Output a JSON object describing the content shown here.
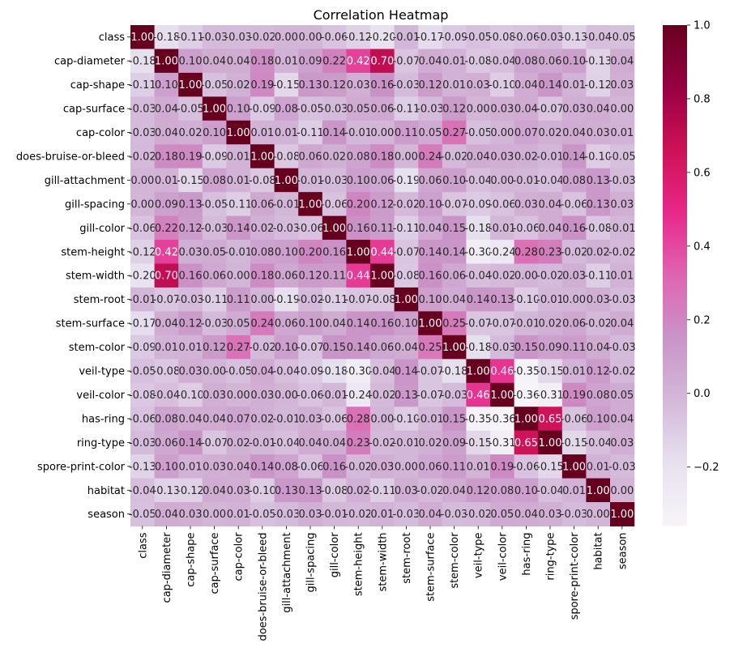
{
  "chart_data": {
    "type": "heatmap",
    "title": "Correlation Heatmap",
    "labels": [
      "class",
      "cap-diameter",
      "cap-shape",
      "cap-surface",
      "cap-color",
      "does-bruise-or-bleed",
      "gill-attachment",
      "gill-spacing",
      "gill-color",
      "stem-height",
      "stem-width",
      "stem-root",
      "stem-surface",
      "stem-color",
      "veil-type",
      "veil-color",
      "has-ring",
      "ring-type",
      "spore-print-color",
      "habitat",
      "season"
    ],
    "values": [
      [
        1.0,
        -0.18,
        -0.11,
        -0.03,
        -0.03,
        -0.02,
        -0.0,
        -0.0,
        -0.06,
        -0.12,
        -0.2,
        -0.01,
        -0.17,
        -0.09,
        -0.05,
        -0.08,
        -0.06,
        -0.03,
        -0.13,
        -0.04,
        -0.05
      ],
      [
        -0.18,
        1.0,
        0.1,
        0.04,
        0.04,
        0.18,
        0.01,
        0.09,
        0.22,
        0.42,
        0.7,
        -0.07,
        0.04,
        0.01,
        -0.08,
        -0.04,
        0.08,
        0.06,
        0.1,
        -0.13,
        0.04
      ],
      [
        -0.11,
        0.1,
        1.0,
        -0.05,
        0.02,
        0.19,
        -0.15,
        0.13,
        0.12,
        0.03,
        0.16,
        -0.03,
        0.12,
        0.01,
        0.03,
        -0.1,
        0.04,
        0.14,
        0.01,
        -0.12,
        0.03
      ],
      [
        -0.03,
        0.04,
        -0.05,
        1.0,
        0.1,
        -0.09,
        0.08,
        -0.05,
        -0.03,
        0.05,
        0.06,
        -0.11,
        -0.03,
        0.12,
        -0.0,
        0.03,
        0.04,
        -0.07,
        0.03,
        0.04,
        -0.0
      ],
      [
        -0.03,
        0.04,
        0.02,
        0.1,
        1.0,
        0.01,
        0.01,
        -0.11,
        0.14,
        -0.01,
        0.0,
        0.11,
        0.05,
        0.27,
        -0.05,
        0.0,
        0.07,
        0.02,
        0.04,
        0.03,
        0.01
      ],
      [
        -0.02,
        0.18,
        0.19,
        -0.09,
        0.01,
        1.0,
        -0.08,
        0.06,
        0.02,
        0.08,
        0.18,
        -0.0,
        0.24,
        -0.02,
        0.04,
        0.03,
        0.02,
        -0.01,
        0.14,
        -0.1,
        -0.05
      ],
      [
        -0.0,
        0.01,
        -0.15,
        0.08,
        0.01,
        -0.08,
        1.0,
        -0.01,
        -0.03,
        0.1,
        0.06,
        -0.19,
        0.06,
        0.1,
        -0.04,
        0.0,
        -0.01,
        -0.04,
        0.08,
        0.13,
        -0.03
      ],
      [
        -0.0,
        0.09,
        0.13,
        -0.05,
        -0.11,
        0.06,
        -0.01,
        1.0,
        -0.06,
        0.2,
        0.12,
        -0.02,
        0.1,
        -0.07,
        -0.09,
        -0.06,
        0.03,
        0.04,
        -0.06,
        0.13,
        0.03
      ],
      [
        -0.06,
        0.22,
        0.12,
        -0.03,
        0.14,
        0.02,
        -0.03,
        -0.06,
        1.0,
        0.16,
        0.11,
        -0.11,
        0.04,
        0.15,
        -0.18,
        -0.01,
        -0.06,
        0.04,
        0.16,
        -0.08,
        -0.01
      ],
      [
        -0.12,
        0.42,
        0.03,
        0.05,
        -0.01,
        0.08,
        0.1,
        0.2,
        0.16,
        1.0,
        0.44,
        -0.07,
        0.14,
        0.14,
        -0.3,
        -0.24,
        0.28,
        0.23,
        -0.02,
        0.02,
        -0.02
      ],
      [
        -0.2,
        0.7,
        0.16,
        0.06,
        0.0,
        0.18,
        0.06,
        0.12,
        0.11,
        0.44,
        1.0,
        -0.08,
        0.16,
        0.06,
        -0.04,
        -0.02,
        -0.0,
        -0.02,
        0.03,
        -0.11,
        0.01
      ],
      [
        -0.01,
        -0.07,
        -0.03,
        -0.11,
        0.11,
        -0.0,
        -0.19,
        -0.02,
        -0.11,
        -0.07,
        -0.08,
        1.0,
        0.1,
        0.04,
        0.14,
        0.13,
        -0.1,
        -0.01,
        0.0,
        0.03,
        -0.03
      ],
      [
        -0.17,
        0.04,
        0.12,
        -0.03,
        0.05,
        0.24,
        0.06,
        0.1,
        0.04,
        0.14,
        0.16,
        0.1,
        1.0,
        0.25,
        -0.07,
        -0.07,
        -0.01,
        0.02,
        0.06,
        -0.02,
        0.04
      ],
      [
        -0.09,
        0.01,
        0.01,
        0.12,
        0.27,
        -0.02,
        0.1,
        -0.07,
        0.15,
        0.14,
        0.06,
        0.04,
        0.25,
        1.0,
        -0.18,
        -0.03,
        0.15,
        0.09,
        0.11,
        0.04,
        -0.03
      ],
      [
        -0.05,
        -0.08,
        0.03,
        -0.0,
        -0.05,
        0.04,
        -0.04,
        -0.09,
        -0.18,
        -0.3,
        -0.04,
        0.14,
        -0.07,
        -0.18,
        1.0,
        0.46,
        -0.35,
        -0.15,
        0.01,
        0.12,
        -0.02
      ],
      [
        -0.08,
        -0.04,
        -0.1,
        0.03,
        0.0,
        0.03,
        0.0,
        -0.06,
        -0.01,
        -0.24,
        -0.02,
        0.13,
        -0.07,
        -0.03,
        0.46,
        1.0,
        -0.36,
        -0.31,
        0.19,
        0.08,
        0.05
      ],
      [
        -0.06,
        0.08,
        0.04,
        0.04,
        0.07,
        0.02,
        -0.01,
        0.03,
        -0.06,
        0.28,
        -0.0,
        -0.1,
        -0.01,
        0.15,
        -0.35,
        -0.36,
        1.0,
        0.65,
        -0.06,
        0.1,
        0.04
      ],
      [
        -0.03,
        0.06,
        0.14,
        -0.07,
        0.02,
        -0.01,
        -0.04,
        0.04,
        0.04,
        0.23,
        -0.02,
        -0.01,
        0.02,
        0.09,
        -0.15,
        -0.31,
        0.65,
        1.0,
        -0.15,
        -0.04,
        0.03
      ],
      [
        -0.13,
        0.1,
        0.01,
        0.03,
        0.04,
        0.14,
        0.08,
        -0.06,
        0.16,
        -0.02,
        0.03,
        0.0,
        0.06,
        0.11,
        0.01,
        0.19,
        -0.06,
        -0.15,
        1.0,
        0.01,
        -0.03
      ],
      [
        -0.04,
        -0.13,
        -0.12,
        0.04,
        0.03,
        -0.1,
        0.13,
        0.13,
        -0.08,
        0.02,
        -0.11,
        0.03,
        -0.02,
        0.04,
        0.12,
        0.08,
        0.1,
        -0.04,
        0.01,
        1.0,
        0.0
      ],
      [
        -0.05,
        0.04,
        0.03,
        -0.0,
        0.01,
        -0.05,
        -0.03,
        0.03,
        -0.01,
        -0.02,
        0.01,
        -0.03,
        0.04,
        -0.03,
        -0.02,
        0.05,
        0.04,
        0.03,
        -0.03,
        0.0,
        1.0
      ]
    ],
    "vmin": -0.36,
    "vmax": 1.0,
    "colormap": "PuRd",
    "colormap_stops": [
      "#f7f4f9",
      "#e7e1ef",
      "#d4b9da",
      "#c994c7",
      "#df65b0",
      "#e7298a",
      "#ce1256",
      "#980043",
      "#67001f"
    ],
    "colorbar_ticks": [
      -0.2,
      0.0,
      0.2,
      0.4,
      0.6,
      0.8,
      1.0
    ],
    "colorbar_tick_labels": [
      "−0.2",
      "0.0",
      "0.2",
      "0.4",
      "0.6",
      "0.8",
      "1.0"
    ],
    "annotation_format": "2 decimals",
    "grid": false,
    "legend": "colorbar-right"
  }
}
